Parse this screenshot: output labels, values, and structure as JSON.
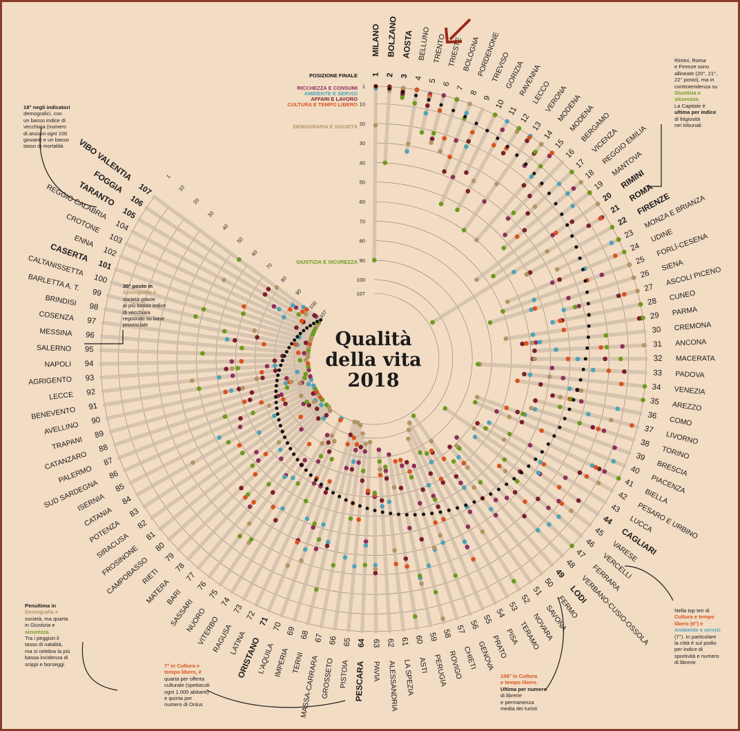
{
  "colors": {
    "posizione_finale": "#111111",
    "ricchezza_consumi": "#8e2f5e",
    "ambiente_servizi": "#4fa3b8",
    "affari_lavoro": "#7b1f2e",
    "cultura_tempo_libero": "#d9531e",
    "demografia_societa": "#b39565",
    "giustizia_sicurezza": "#6e9a1e",
    "arrow": "#9a2a1a"
  },
  "chart_data": {
    "type": "scatter",
    "subtype": "radial ranking",
    "title": "Qualità della vita 2018",
    "ylim": [
      1,
      107
    ],
    "rank_ticks": [
      1,
      10,
      20,
      30,
      40,
      50,
      60,
      70,
      80,
      90,
      100,
      107
    ],
    "legend": [
      "POSIZIONE FINALE",
      "RICCHEZZA E CONSUMI",
      "AMBIENTE E SERVIZI",
      "AFFARI E LAVORO",
      "CULTURA E TEMPO LIBERO",
      "DEMOGRAFIA E SOCIETÀ",
      "GIUSTIZIA E SICUREZZA"
    ],
    "highlighted_category": "TRENTO",
    "categories": [
      "MILANO",
      "BOLZANO",
      "AOSTA",
      "BELLUNO",
      "TRENTO",
      "TRIESTE",
      "BOLOGNA",
      "PORDENONE",
      "TREVISO",
      "GORIZIA",
      "RAVENNA",
      "LECCO",
      "VERONA",
      "MODENA",
      "MODENA",
      "BERGAMO",
      "VICENZA",
      "REGGIO EMILIA",
      "MANTOVA",
      "RIMINI",
      "ROMA",
      "FIRENZE",
      "MONZA E BRIANZA",
      "UDINE",
      "FORLÌ-CESENA",
      "SIENA",
      "ASCOLI PICENO",
      "CUNEO",
      "PARMA",
      "CREMONA",
      "ANCONA",
      "MACERATA",
      "PADOVA",
      "VENEZIA",
      "AREZZO",
      "COMO",
      "LIVORNO",
      "TORINO",
      "BRESCIA",
      "PIACENZA",
      "BIELLA",
      "PESARO E URBINO",
      "LUCCA",
      "CAGLIARI",
      "VARESE",
      "VERCELLI",
      "FERRARA",
      "VERBANO-CUSIO-OSSOLA",
      "LODI",
      "FERMO",
      "SAVONA",
      "NOVARA",
      "TERAMO",
      "PISA",
      "PRATO",
      "GENOVA",
      "CHIETI",
      "ROVIGO",
      "PERUGIA",
      "ASTI",
      "LA SPEZIA",
      "ALESSANDRIA",
      "PAVIA",
      "PESCARA",
      "PISTOIA",
      "GROSSETO",
      "MASSA-CARRARA",
      "TERNI",
      "IMPERIA",
      "L'AQUILA",
      "ORISTANO",
      "LATINA",
      "RAGUSA",
      "VITERBO",
      "NUORO",
      "SASSARI",
      "BARI",
      "MATERA",
      "RIETI",
      "CAMPOBASSO",
      "FROSINONE",
      "SIRACUSA",
      "POTENZA",
      "CATANIA",
      "ISERNIA",
      "SUD SARDEGNA",
      "PALERMO",
      "CATANZARO",
      "TRAPANI",
      "AVELLINO",
      "BENEVENTO",
      "LECCE",
      "AGRIGENTO",
      "NAPOLI",
      "SALERNO",
      "MESSINA",
      "COSENZA",
      "BRINDISI",
      "BARLETTA A. T.",
      "CALTANISSETTA",
      "CASERTA",
      "ENNA",
      "CROTONE",
      "REGGIO CALABRIA",
      "TARANTO",
      "FOGGIA",
      "VIBO VALENTIA"
    ],
    "bold_categories": [
      "MILANO",
      "BOLZANO",
      "AOSTA",
      "RIMINI",
      "ROMA",
      "FIRENZE",
      "CAGLIARI",
      "LODI",
      "ORISTANO",
      "PESCARA",
      "CASERTA",
      "TARANTO",
      "FOGGIA",
      "VIBO VALENTIA"
    ],
    "series_ranks_sample": {
      "MILANO": [
        1,
        1,
        2,
        1,
        1,
        21,
        90
      ],
      "BOLZANO": [
        2,
        2,
        1,
        1,
        2,
        3,
        40
      ],
      "AOSTA": [
        3,
        3,
        5,
        4,
        2,
        1,
        6
      ],
      "TRENTO": [
        5,
        2,
        12,
        8,
        3,
        4,
        22
      ],
      "VIBO VALENTIA": [
        107,
        104,
        96,
        103,
        98,
        79,
        55
      ],
      "ROMA": [
        21,
        3,
        56,
        11,
        4,
        36,
        105
      ]
    }
  },
  "labels": {
    "title_l1": "Qualità",
    "title_l2": "della vita",
    "title_l3": "2018",
    "legend_final": "POSIZIONE FINALE",
    "legend_ricchezza": "RICCHEZZA E CONSUMI",
    "legend_ambiente": "AMBIENTE E SERVIZI",
    "legend_affari": "AFFARI E LAVORO",
    "legend_cultura": "CULTURA E TEMPO LIBERO",
    "legend_demografia": "DEMOGRAFIA E SOCIETÀ",
    "legend_giustizia": "GIUSTIZIA E SICUREZZA"
  },
  "annotations": {
    "top_right": [
      "Rimini, Roma",
      "e Firenze sono",
      "allineate (20°, 21°,",
      "22° posto), ma in",
      "controtendenza su",
      "Giustizia e",
      "sicurezza.",
      "La Capitale è",
      "ultima per indice",
      "di litigiosità",
      "nei tribunali"
    ],
    "top_left": [
      "18° negli indicatori",
      "demografici, con",
      "un basso indice di",
      "vecchiaia (numero",
      "di anziani ogni 100",
      "giovani) e un basso",
      "tasso di mortalità"
    ],
    "mid_left": [
      "30° posto in",
      "Demografia e",
      "società grazie",
      "al più basso indice",
      "di vecchiaia",
      "registrato su base",
      "provinciale"
    ],
    "bottom_left": [
      "Penultima in",
      "Demografia e",
      "società, ma quarta",
      "in Giustizia e",
      "sicurezza.",
      "Tra i peggiori il",
      "tasso di natalità,",
      "ma si celebra la più",
      "bassa incidenza di",
      "scippi e borseggi"
    ],
    "bottom_center": [
      "7° in Cultura e",
      "tempo libero, è",
      "quarta per offerta",
      "culturale (spettacoli",
      "ogni 1.000 abitanti)",
      "e quinta per",
      "numero di Onlus"
    ],
    "bottom_right": [
      "106° in Cultura",
      "e tempo libero.",
      "Ultima per numero",
      "di librerie",
      "e permanenza",
      "media dei turisti"
    ],
    "right": [
      "Nella top ten di",
      "Cultura e tempo",
      "libero (6°) e",
      "Ambiente e servizi",
      "(7°). In particolare",
      "la città è sul podio",
      "per indice di",
      "sportività e numero",
      "di librerie"
    ]
  }
}
